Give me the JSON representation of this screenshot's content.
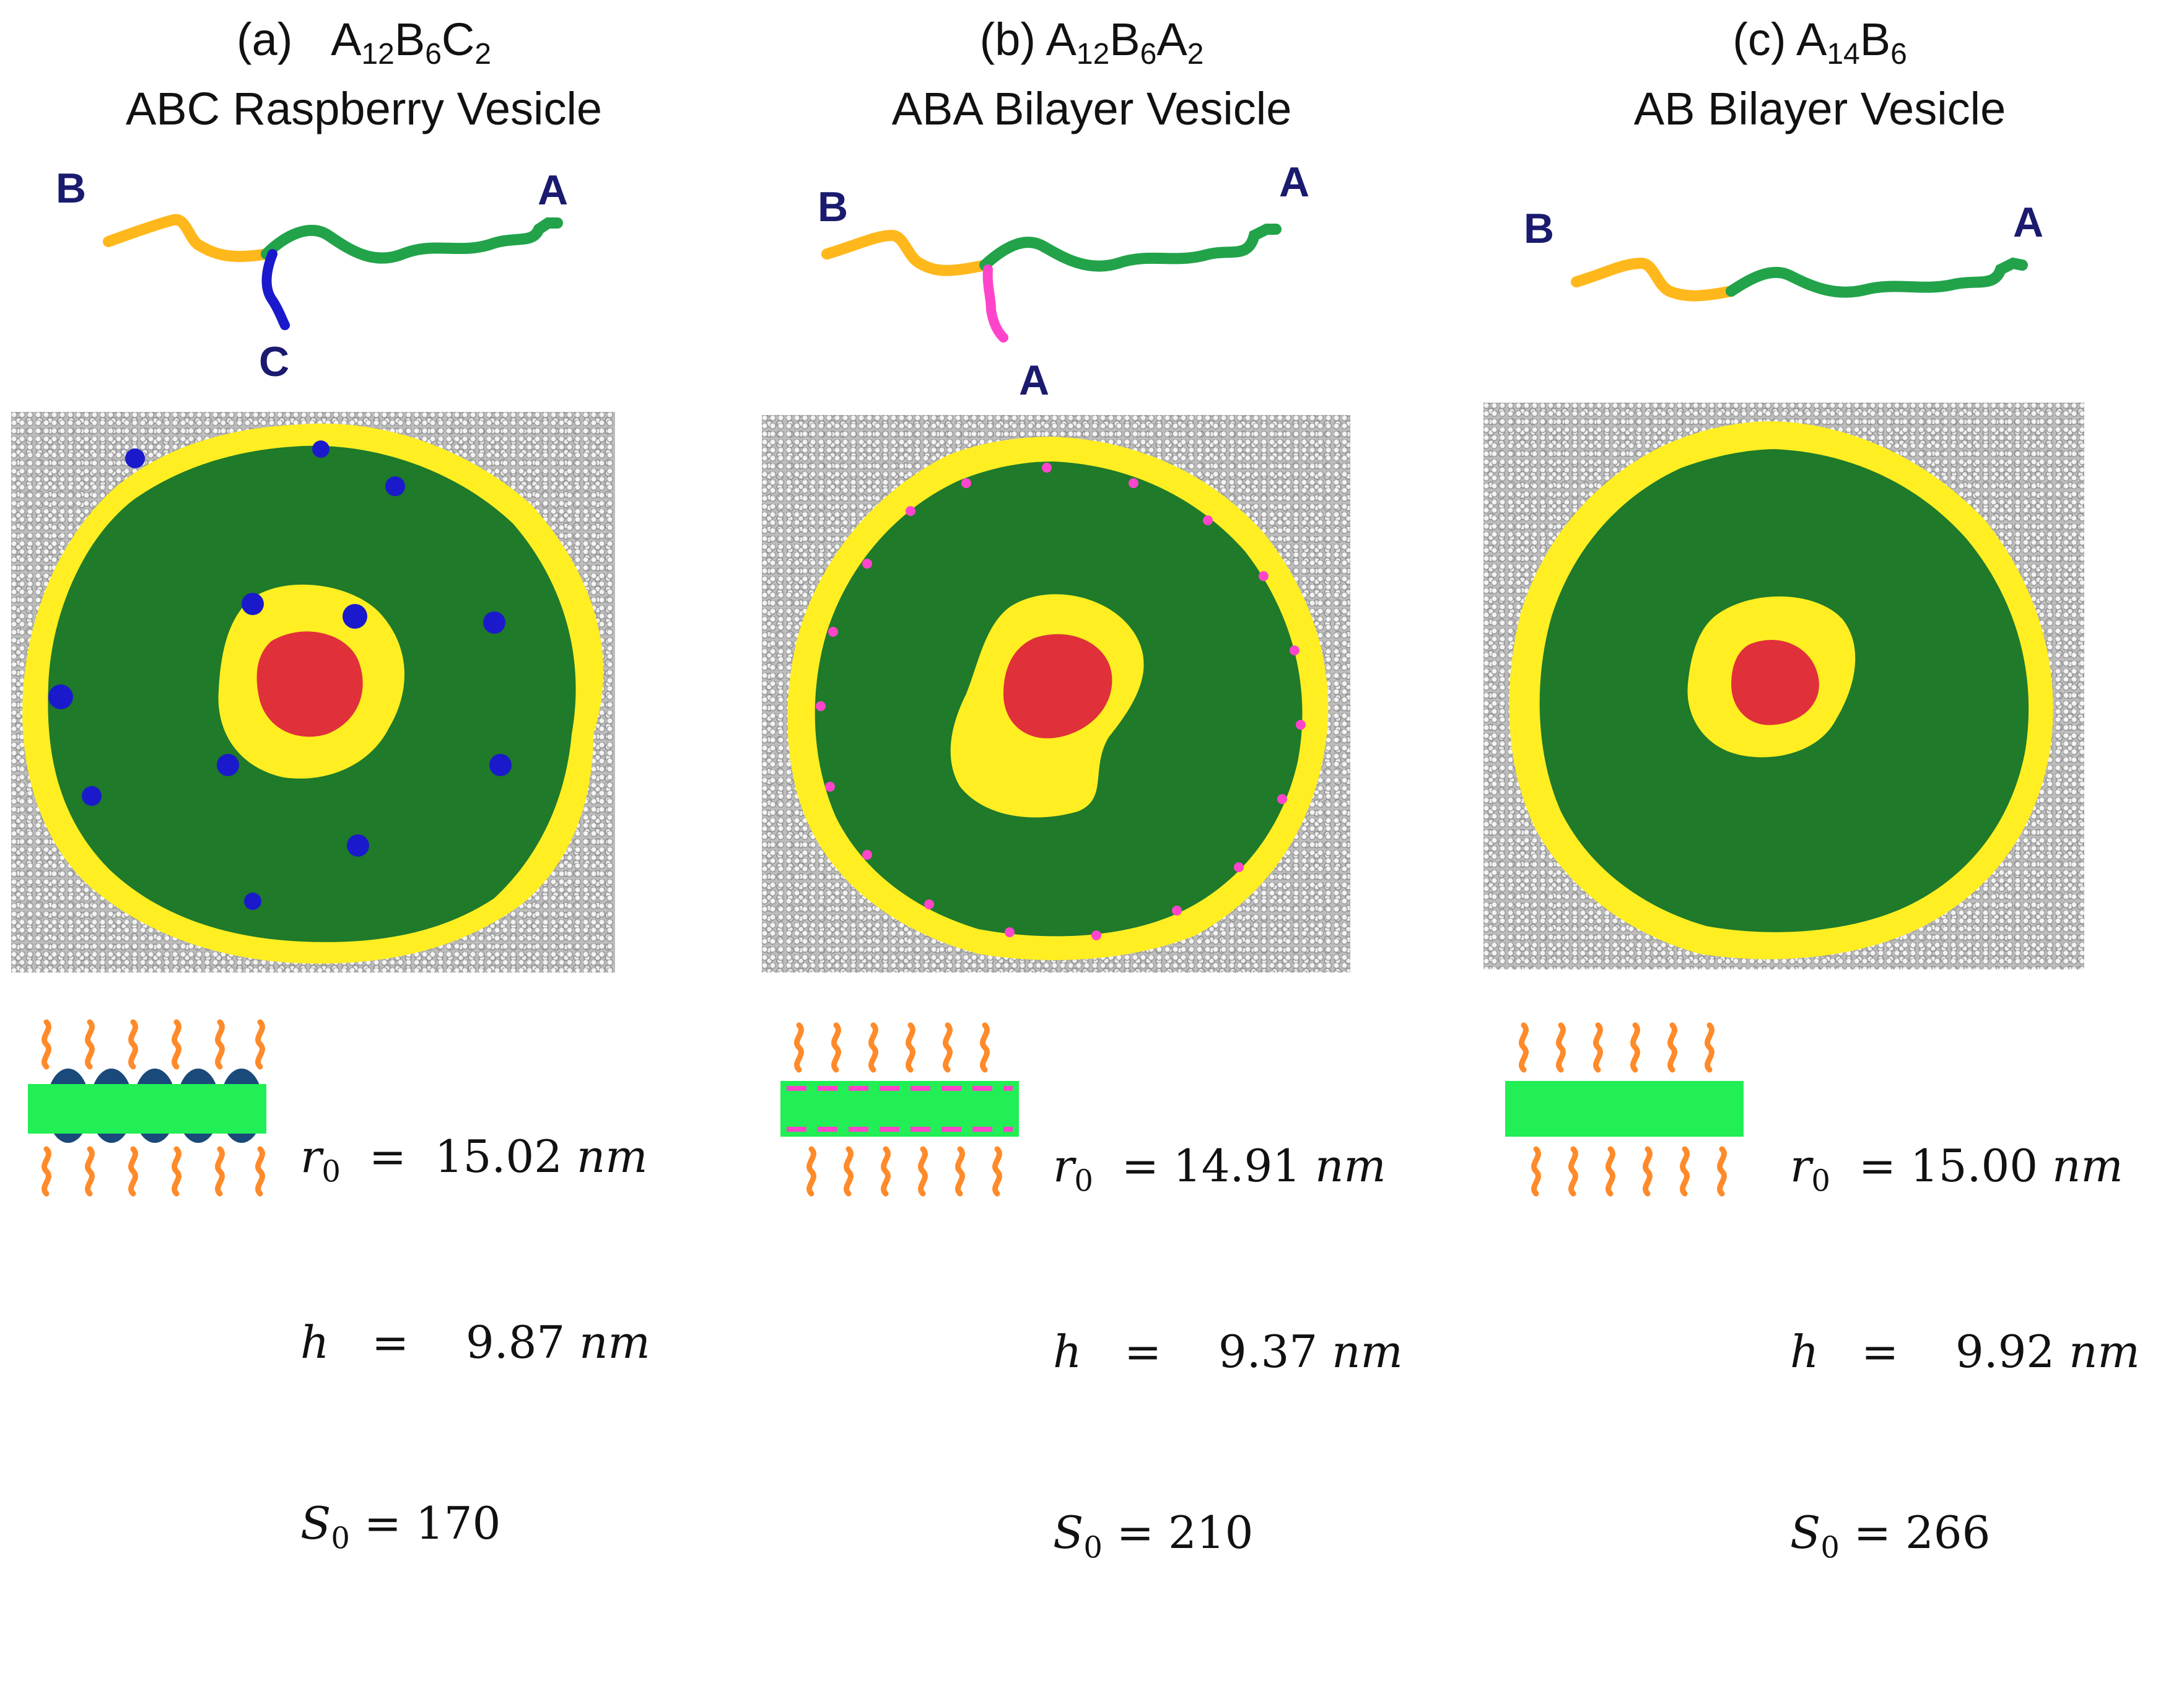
{
  "panels": [
    {
      "title_prefix": "(a)",
      "formula": [
        "A",
        "12",
        "B",
        "6",
        "C",
        "2"
      ],
      "name": "ABC Raspberry Vesicle",
      "chain_labels": {
        "left": "B",
        "right": "A",
        "branch": "C"
      },
      "branch_color": "#1a1acc",
      "params": {
        "r0_sym": "r",
        "r0_sub": "0",
        "r0_eq": "=",
        "r0_val": "15.02",
        "r0_unit": "nm",
        "h_sym": "h",
        "h_eq": "=",
        "h_val": "9.87",
        "h_unit": "nm",
        "s0_sym": "S",
        "s0_sub": "0",
        "s0_eq": "=",
        "s0_val": "170"
      }
    },
    {
      "title_prefix": "(b)",
      "formula": [
        "A",
        "12",
        "B",
        "6",
        "A",
        "2"
      ],
      "name": "ABA Bilayer Vesicle",
      "chain_labels": {
        "left": "B",
        "right": "A",
        "branch": "A"
      },
      "branch_color": "#ff44cc",
      "params": {
        "r0_sym": "r",
        "r0_sub": "0",
        "r0_eq": "=",
        "r0_val": "14.91",
        "r0_unit": "nm",
        "h_sym": "h",
        "h_eq": "=",
        "h_val": "9.37",
        "h_unit": "nm",
        "s0_sym": "S",
        "s0_sub": "0",
        "s0_eq": "=",
        "s0_val": "210"
      }
    },
    {
      "title_prefix": "(c)",
      "formula": [
        "A",
        "14",
        "B",
        "6",
        "",
        ""
      ],
      "name": "AB Bilayer Vesicle",
      "chain_labels": {
        "left": "B",
        "right": "A",
        "branch": ""
      },
      "branch_color": "",
      "params": {
        "r0_sym": "r",
        "r0_sub": "0",
        "r0_eq": "=",
        "r0_val": "15.00",
        "r0_unit": "nm",
        "h_sym": "h",
        "h_eq": "=",
        "h_val": "9.92",
        "h_unit": "nm",
        "s0_sym": "S",
        "s0_sub": "0",
        "s0_eq": "=",
        "s0_val": "266"
      }
    }
  ],
  "colors": {
    "A_block": "#22a34a",
    "B_block": "#ffb81c",
    "core_red": "#e0303a",
    "membrane": "#22ee55",
    "tail": "#ff8a2a",
    "bead_yellow": "#ffee22",
    "bead_green": "#1f7a2a",
    "knob_blue": "#1a4a7a"
  }
}
